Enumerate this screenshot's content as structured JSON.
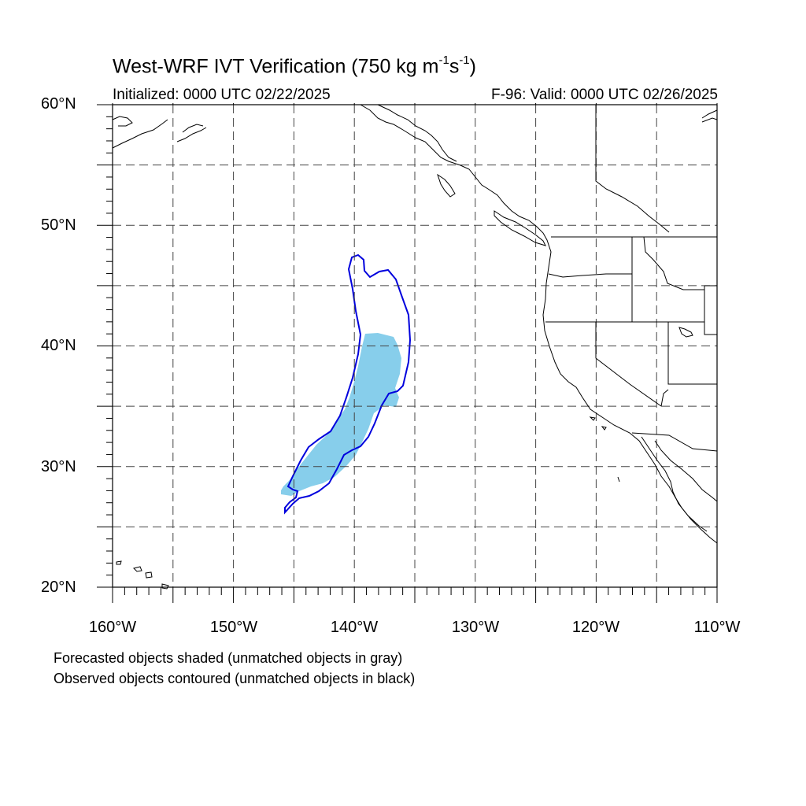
{
  "title": {
    "main": "West-WRF IVT Verification (750 kg m",
    "sup1": "-1",
    "mid": "s",
    "sup2": "-1",
    "end": ")"
  },
  "initialized": "Initialized: 0000 UTC 02/22/2025",
  "valid": "F-96: Valid: 0000 UTC 02/26/2025",
  "lat_labels": [
    "60°N",
    "50°N",
    "40°N",
    "30°N",
    "20°N"
  ],
  "lon_labels": [
    "160°W",
    "150°W",
    "140°W",
    "130°W",
    "120°W",
    "110°W"
  ],
  "notes": [
    "Forecasted objects shaded (unmatched objects in gray)",
    "Observed objects contoured (unmatched objects in black)"
  ],
  "map": {
    "lat_range": [
      20,
      60
    ],
    "lon_range": [
      -160,
      -110
    ],
    "grid_lines": "dashed",
    "forecast_object_color": "#87ceeb",
    "observed_object_color": "#0000dd",
    "coastline_color": "#000000"
  }
}
